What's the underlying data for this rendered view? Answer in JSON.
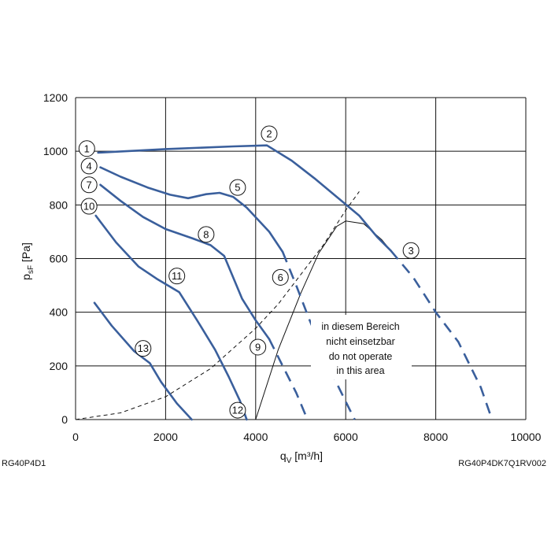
{
  "footer": {
    "left_code": "RG40P4D1",
    "right_code": "RG40P4DK7Q1RV002"
  },
  "chart_data": {
    "type": "line",
    "xlabel": "q",
    "xlabel_sub": "V",
    "xlabel_unit": " [m³/h]",
    "ylabel": "p",
    "ylabel_sub": "sF",
    "ylabel_unit": " [Pa]",
    "xlim": [
      0,
      10000
    ],
    "ylim": [
      0,
      1200
    ],
    "xticks": [
      0,
      2000,
      4000,
      6000,
      8000,
      10000
    ],
    "yticks": [
      0,
      200,
      400,
      600,
      800,
      1000,
      1200
    ],
    "xtick_labels": [
      "0",
      "2000",
      "4000",
      "6000",
      "8000",
      "10000"
    ],
    "ytick_labels": [
      "0",
      "200",
      "400",
      "600",
      "800",
      "1000",
      "1200"
    ],
    "grid": true,
    "colors": {
      "curve": "#3a5f9c",
      "system": "#111111",
      "grid": "#111111"
    },
    "curves": [
      {
        "solid": [
          [
            500,
            995
          ],
          [
            2000,
            1008
          ],
          [
            3500,
            1018
          ],
          [
            4250,
            1022
          ],
          [
            4800,
            965
          ],
          [
            5300,
            900
          ],
          [
            5800,
            830
          ],
          [
            6300,
            760
          ],
          [
            6700,
            680
          ],
          [
            7000,
            630
          ]
        ],
        "dashed": [
          [
            7000,
            630
          ],
          [
            7500,
            530
          ],
          [
            8000,
            400
          ],
          [
            8500,
            290
          ],
          [
            9000,
            120
          ],
          [
            9250,
            0
          ]
        ]
      },
      {
        "solid": [
          [
            550,
            940
          ],
          [
            1000,
            905
          ],
          [
            1600,
            865
          ],
          [
            2100,
            838
          ],
          [
            2500,
            825
          ],
          [
            2900,
            840
          ],
          [
            3200,
            845
          ],
          [
            3500,
            830
          ],
          [
            3800,
            790
          ],
          [
            4300,
            700
          ],
          [
            4600,
            625
          ]
        ],
        "dashed": [
          [
            4600,
            625
          ],
          [
            4900,
            500
          ],
          [
            5200,
            370
          ],
          [
            5500,
            250
          ],
          [
            5800,
            135
          ],
          [
            6050,
            50
          ],
          [
            6200,
            0
          ]
        ]
      },
      {
        "solid": [
          [
            550,
            875
          ],
          [
            1000,
            815
          ],
          [
            1500,
            755
          ],
          [
            2000,
            710
          ],
          [
            2600,
            675
          ],
          [
            3000,
            650
          ],
          [
            3300,
            610
          ],
          [
            3500,
            530
          ],
          [
            3700,
            450
          ],
          [
            4000,
            370
          ],
          [
            4300,
            300
          ]
        ],
        "dashed": [
          [
            4300,
            300
          ],
          [
            4600,
            200
          ],
          [
            4900,
            100
          ],
          [
            5150,
            0
          ]
        ]
      },
      {
        "solid": [
          [
            450,
            760
          ],
          [
            900,
            660
          ],
          [
            1400,
            570
          ],
          [
            1800,
            525
          ],
          [
            2300,
            475
          ],
          [
            2700,
            370
          ],
          [
            3100,
            260
          ],
          [
            3400,
            160
          ],
          [
            3650,
            70
          ],
          [
            3800,
            0
          ]
        ]
      },
      {
        "solid": [
          [
            420,
            435
          ],
          [
            800,
            350
          ],
          [
            1300,
            255
          ],
          [
            1650,
            210
          ],
          [
            1900,
            140
          ],
          [
            2250,
            60
          ],
          [
            2580,
            0
          ]
        ]
      }
    ],
    "system_curve": [
      [
        0,
        0
      ],
      [
        1000,
        25
      ],
      [
        2000,
        85
      ],
      [
        3000,
        190
      ],
      [
        4000,
        340
      ],
      [
        4500,
        430
      ],
      [
        5000,
        540
      ],
      [
        5500,
        650
      ],
      [
        6000,
        780
      ],
      [
        6300,
        850
      ]
    ],
    "operating_limit": [
      [
        4000,
        0
      ],
      [
        4500,
        260
      ],
      [
        5000,
        470
      ],
      [
        5400,
        620
      ],
      [
        5800,
        720
      ],
      [
        6000,
        740
      ],
      [
        6400,
        730
      ],
      [
        6800,
        670
      ],
      [
        7000,
        630
      ]
    ],
    "markers": [
      {
        "label": "1",
        "x": 250,
        "y": 1010
      },
      {
        "label": "2",
        "x": 4300,
        "y": 1065
      },
      {
        "label": "3",
        "x": 7450,
        "y": 630
      },
      {
        "label": "4",
        "x": 300,
        "y": 945
      },
      {
        "label": "5",
        "x": 3600,
        "y": 865
      },
      {
        "label": "6",
        "x": 4550,
        "y": 530
      },
      {
        "label": "7",
        "x": 300,
        "y": 875
      },
      {
        "label": "8",
        "x": 2900,
        "y": 690
      },
      {
        "label": "9",
        "x": 4050,
        "y": 270
      },
      {
        "label": "10",
        "x": 300,
        "y": 795
      },
      {
        "label": "11",
        "x": 2250,
        "y": 535
      },
      {
        "label": "12",
        "x": 3600,
        "y": 35
      },
      {
        "label": "13",
        "x": 1500,
        "y": 265
      }
    ],
    "note": [
      "in diesem Bereich",
      "nicht einsetzbar",
      "do not operate",
      "in this area"
    ]
  }
}
